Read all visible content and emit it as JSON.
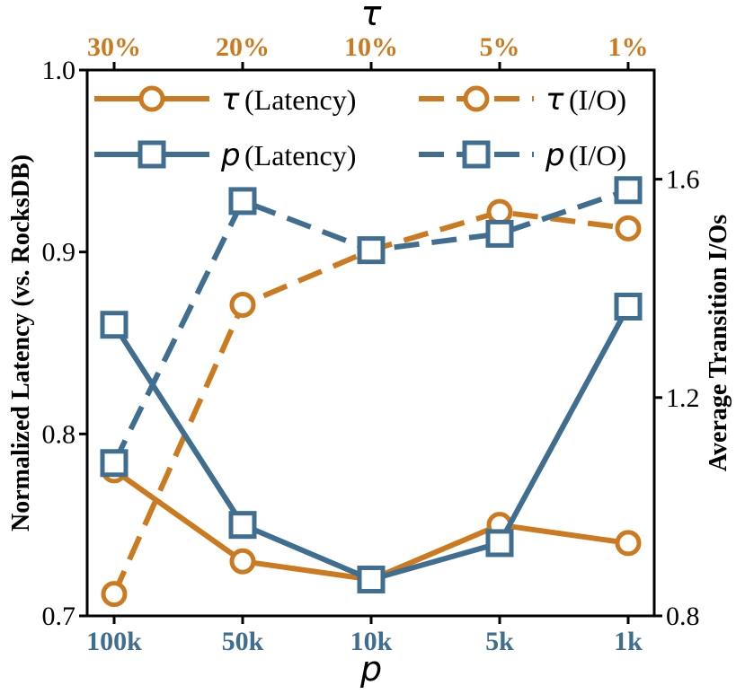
{
  "chart_data": {
    "type": "line",
    "axes": {
      "bottom": {
        "symbol": "p",
        "ticks": [
          "100k",
          "50k",
          "10k",
          "5k",
          "1k"
        ],
        "color": "#3f6e90"
      },
      "top": {
        "symbol": "τ",
        "ticks": [
          "30%",
          "20%",
          "10%",
          "5%",
          "1%"
        ],
        "color": "#cc7a1f"
      },
      "left": {
        "label": "Normalized Latency (vs. RocksDB)",
        "ylim": [
          0.7,
          1.0
        ],
        "ticks": [
          "0.7",
          "0.8",
          "0.9",
          "1.0"
        ],
        "tick_values": [
          0.7,
          0.8,
          0.9,
          1.0
        ]
      },
      "right": {
        "label": "Average Transition I/Os",
        "ylim": [
          0.8,
          1.8
        ],
        "ticks": [
          "0.8",
          "1.2",
          "1.6"
        ],
        "tick_values": [
          0.8,
          1.2,
          1.6
        ]
      }
    },
    "series": [
      {
        "symbol": "τ",
        "name": "(Latency)",
        "axis": "left",
        "color": "#cc7a1f",
        "marker": "circle",
        "dash": false,
        "values": [
          0.78,
          0.73,
          0.72,
          0.75,
          0.74
        ]
      },
      {
        "symbol": "τ",
        "name": "(I/O)",
        "axis": "right",
        "color": "#cc7a1f",
        "marker": "circle",
        "dash": true,
        "values": [
          0.84,
          1.37,
          1.47,
          1.54,
          1.51
        ]
      },
      {
        "symbol": "p",
        "name": "(Latency)",
        "axis": "left",
        "color": "#3f6e90",
        "marker": "square",
        "dash": false,
        "values": [
          0.86,
          0.75,
          0.72,
          0.74,
          0.87
        ]
      },
      {
        "symbol": "p",
        "name": "(I/O)",
        "axis": "right",
        "color": "#3f6e90",
        "marker": "square",
        "dash": true,
        "values": [
          1.08,
          1.56,
          1.47,
          1.5,
          1.58
        ]
      }
    ],
    "legend_placement": "top"
  }
}
